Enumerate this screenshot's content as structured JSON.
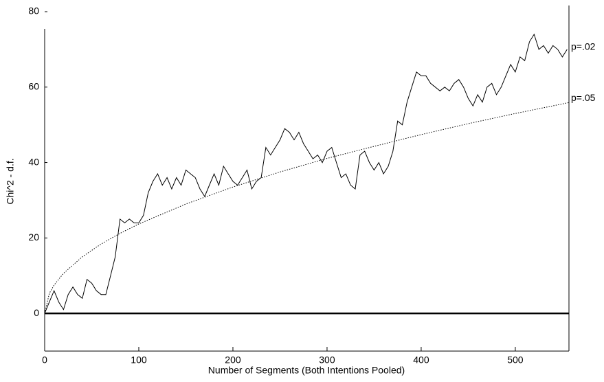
{
  "chart_data": {
    "type": "line",
    "x_label": "Number of Segments (Both Intentions Pooled)",
    "y_label": "Chi^2 - d.f.",
    "xlim": [
      0,
      557
    ],
    "ylim": [
      -10,
      80
    ],
    "xticks": [
      0,
      100,
      200,
      300,
      400,
      500
    ],
    "yticks": [
      0,
      20,
      40,
      60,
      80
    ],
    "annotations": [
      "p=.02"
    ],
    "series": [
      {
        "color": "#000000",
        "style": "solid",
        "x": [
          0,
          5,
          10,
          15,
          20,
          25,
          30,
          35,
          40,
          45,
          50,
          55,
          60,
          65,
          70,
          75,
          80,
          85,
          90,
          95,
          100,
          105,
          110,
          115,
          120,
          125,
          130,
          135,
          140,
          145,
          150,
          155,
          160,
          165,
          170,
          175,
          180,
          185,
          190,
          195,
          200,
          205,
          210,
          215,
          220,
          225,
          230,
          235,
          240,
          245,
          250,
          255,
          260,
          265,
          270,
          275,
          280,
          285,
          290,
          295,
          300,
          305,
          310,
          315,
          320,
          325,
          330,
          335,
          340,
          345,
          350,
          355,
          360,
          365,
          370,
          375,
          380,
          385,
          390,
          395,
          400,
          405,
          410,
          415,
          420,
          425,
          430,
          435,
          440,
          445,
          450,
          455,
          460,
          465,
          470,
          475,
          480,
          485,
          490,
          495,
          500,
          505,
          510,
          515,
          520,
          525,
          530,
          535,
          540,
          545,
          550,
          555
        ],
        "values": [
          0,
          3,
          6,
          3,
          1,
          5,
          7,
          5,
          4,
          9,
          8,
          6,
          5,
          5,
          10,
          15,
          25,
          24,
          25,
          24,
          24,
          26,
          32,
          35,
          37,
          34,
          36,
          33,
          36,
          34,
          38,
          37,
          36,
          33,
          31,
          34,
          37,
          34,
          39,
          37,
          35,
          34,
          36,
          38,
          33,
          35,
          36,
          44,
          42,
          44,
          46,
          49,
          48,
          46,
          48,
          45,
          43,
          41,
          42,
          40,
          43,
          44,
          40,
          36,
          37,
          34,
          33,
          42,
          43,
          40,
          38,
          40,
          37,
          39,
          43,
          51,
          50,
          56,
          60,
          64,
          63,
          63,
          61,
          60,
          59,
          60,
          59,
          61,
          62,
          60,
          57,
          55,
          58,
          56,
          60,
          61,
          58,
          60,
          63,
          66,
          64,
          68,
          67,
          72,
          74,
          70,
          71,
          69,
          71,
          70,
          68,
          70
        ]
      },
      {
        "name": "p=.05",
        "color": "#000000",
        "style": "dotted",
        "x": [
          0,
          5,
          10,
          20,
          40,
          60,
          80,
          100,
          150,
          200,
          250,
          300,
          350,
          400,
          450,
          500,
          557
        ],
        "values": [
          0,
          5.3,
          7.5,
          10.6,
          15.0,
          18.4,
          21.2,
          23.7,
          29.0,
          33.5,
          37.5,
          41.1,
          44.3,
          47.4,
          50.3,
          53.0,
          55.9
        ]
      }
    ]
  }
}
